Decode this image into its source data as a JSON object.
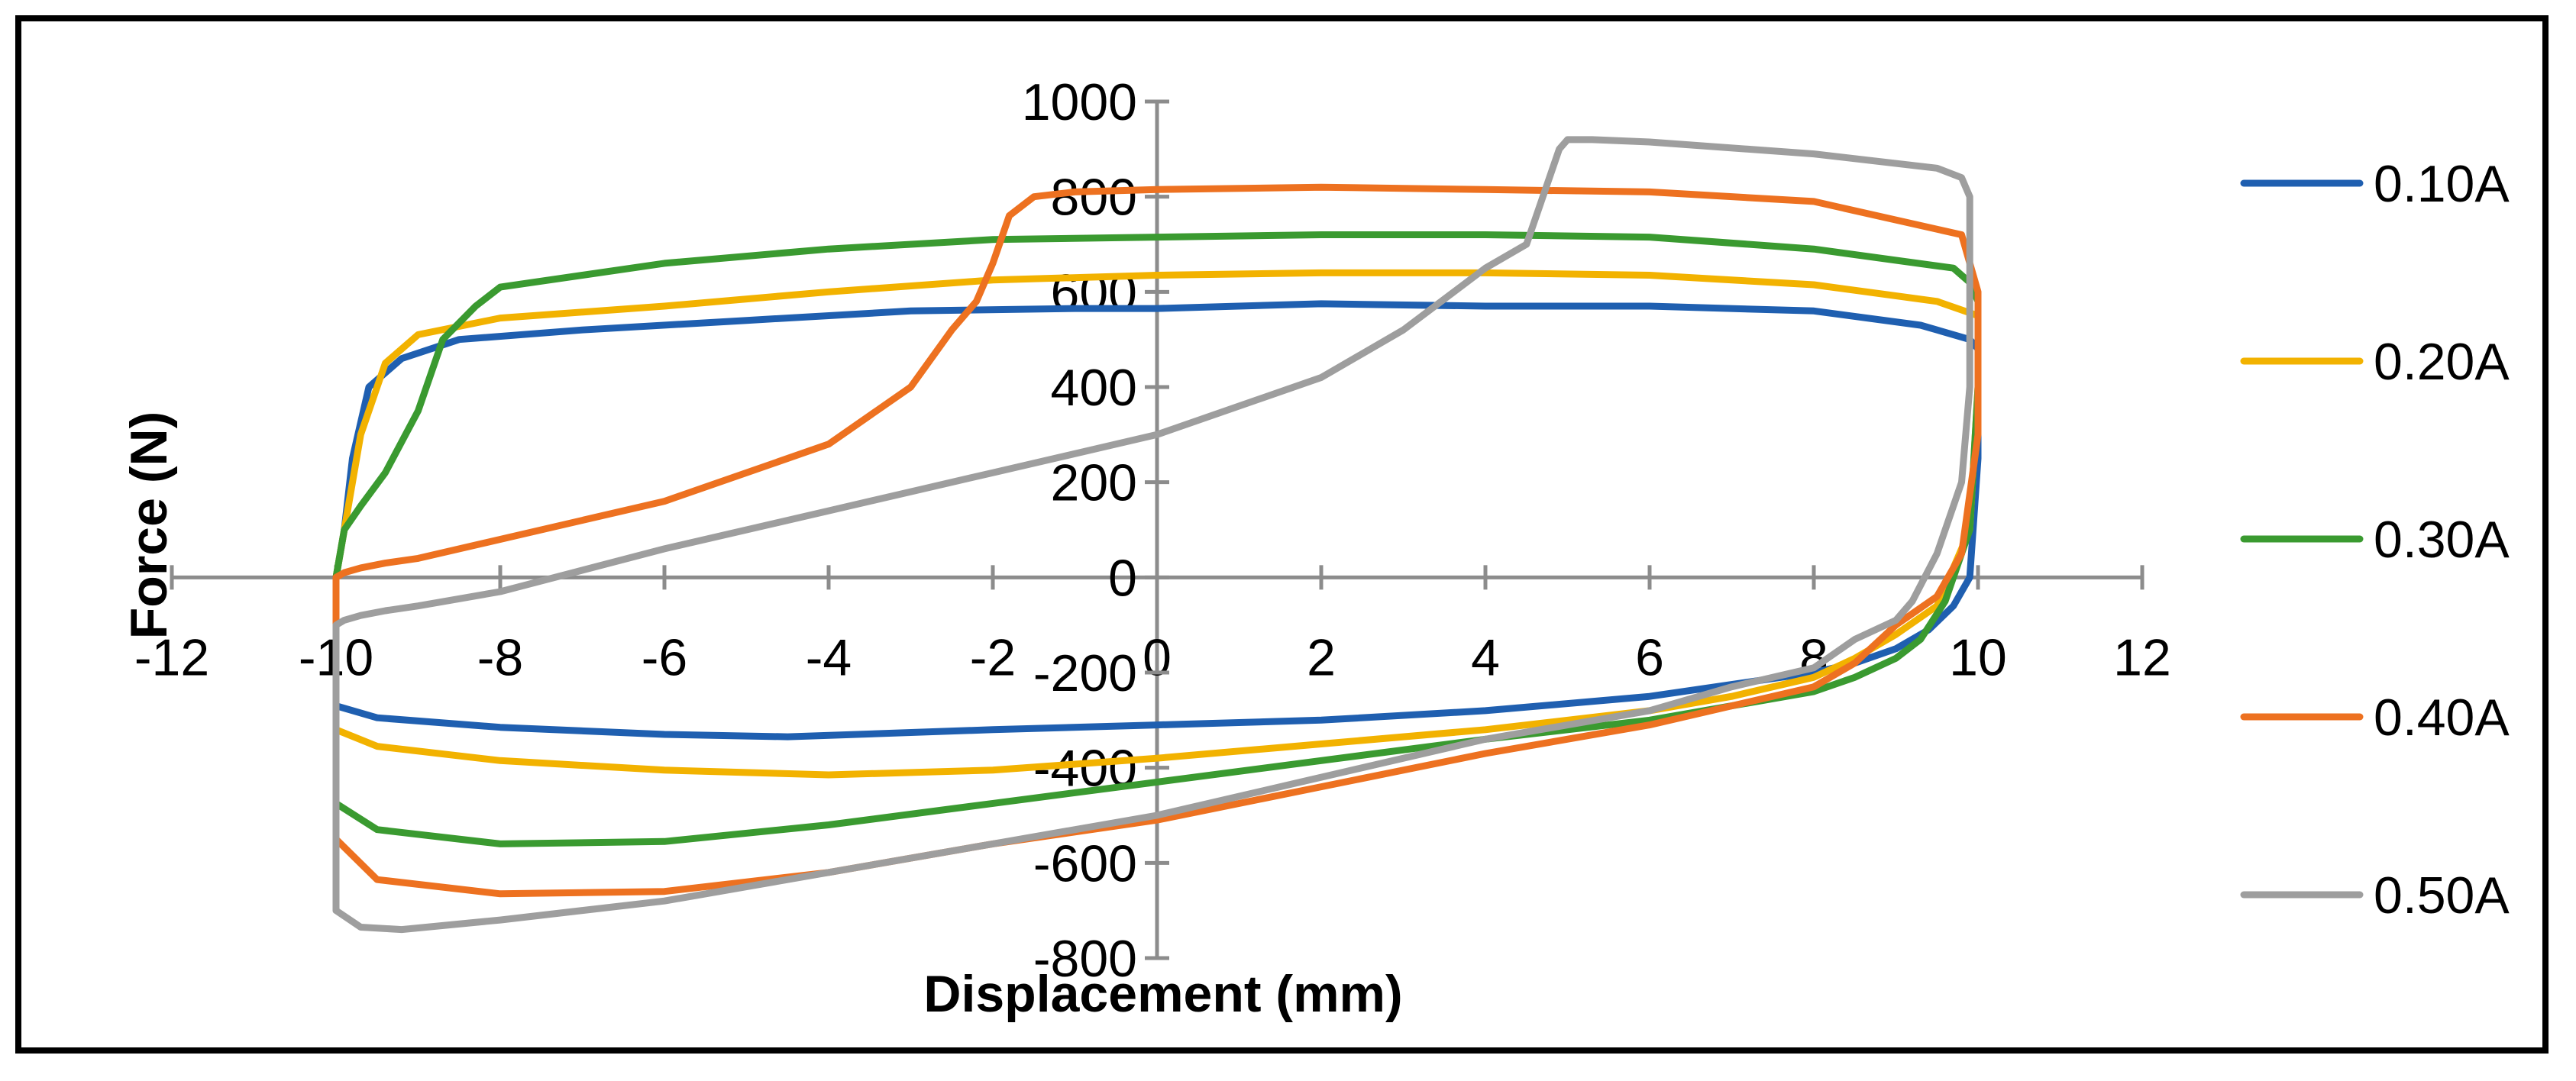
{
  "chart_data": {
    "type": "line",
    "title": "",
    "xlabel": "Displacement (mm)",
    "ylabel": "Force (N)",
    "xlim": [
      -12,
      12
    ],
    "ylim": [
      -800,
      1000
    ],
    "x_ticks": [
      "-12",
      "-10",
      "-8",
      "-6",
      "-4",
      "-2",
      "0",
      "2",
      "4",
      "6",
      "8",
      "10",
      "12"
    ],
    "y_ticks": [
      "-800",
      "-600",
      "-400",
      "-200",
      "0",
      "200",
      "400",
      "600",
      "800",
      "1000"
    ],
    "grid": false,
    "legend_position": "right",
    "series": [
      {
        "name": "0.10A",
        "color": "#1F5FB0",
        "x": [
          -10,
          -9.9,
          -9.8,
          -9.6,
          -9.2,
          -8.5,
          -7,
          -5,
          -3,
          -1,
          0,
          2,
          4,
          6,
          8,
          9.3,
          9.5,
          9.9,
          10,
          10,
          9.9,
          9.7,
          9.4,
          9,
          8.5,
          8,
          7,
          6,
          4,
          2,
          0,
          -2,
          -4.5,
          -6,
          -8,
          -9.5,
          -10,
          -10,
          -10
        ],
        "y": [
          0,
          100,
          250,
          400,
          460,
          500,
          520,
          540,
          560,
          565,
          565,
          575,
          570,
          570,
          560,
          530,
          520,
          500,
          480,
          250,
          0,
          -60,
          -110,
          -150,
          -180,
          -200,
          -225,
          -250,
          -280,
          -300,
          -310,
          -320,
          -335,
          -330,
          -315,
          -295,
          -270,
          -100,
          0
        ]
      },
      {
        "name": "0.20A",
        "color": "#F2B200",
        "x": [
          -10,
          -9.9,
          -9.7,
          -9.4,
          -9,
          -8,
          -6,
          -4,
          -2,
          0,
          2,
          4,
          6,
          8,
          9.5,
          10,
          10,
          9.9,
          9.5,
          9,
          8.5,
          8,
          7,
          6,
          4,
          2,
          0,
          -2,
          -4,
          -6,
          -8,
          -9.5,
          -10,
          -10,
          -10
        ],
        "y": [
          0,
          100,
          300,
          450,
          510,
          545,
          570,
          600,
          625,
          635,
          640,
          640,
          635,
          615,
          580,
          550,
          400,
          100,
          -60,
          -120,
          -170,
          -210,
          -250,
          -280,
          -320,
          -350,
          -380,
          -405,
          -415,
          -405,
          -385,
          -355,
          -320,
          -100,
          0
        ]
      },
      {
        "name": "0.30A",
        "color": "#3A9A30",
        "x": [
          -10,
          -9.9,
          -9.7,
          -9.4,
          -9,
          -8.7,
          -8.3,
          -8,
          -7,
          -6,
          -4,
          -2,
          0,
          2,
          4,
          6,
          8,
          9.7,
          9.9,
          10,
          10,
          9.9,
          9.6,
          9.3,
          9,
          8.5,
          8,
          7,
          6,
          4,
          2,
          0,
          -2,
          -4,
          -6,
          -8,
          -9.5,
          -10,
          -10,
          -10
        ],
        "y": [
          0,
          100,
          150,
          220,
          350,
          500,
          570,
          610,
          635,
          660,
          690,
          710,
          715,
          720,
          720,
          715,
          690,
          650,
          620,
          580,
          400,
          100,
          -50,
          -130,
          -170,
          -210,
          -240,
          -270,
          -300,
          -340,
          -385,
          -430,
          -475,
          -520,
          -555,
          -560,
          -530,
          -475,
          -350,
          0
        ]
      },
      {
        "name": "0.40A",
        "color": "#ED7120",
        "x": [
          -10,
          -9.9,
          -9.7,
          -9.4,
          -9,
          -8,
          -6,
          -4,
          -3,
          -2.5,
          -2.2,
          -2,
          -1.8,
          -1.5,
          -1,
          0,
          2,
          4,
          6,
          8,
          9.8,
          10,
          10,
          9.8,
          9.5,
          9,
          8.5,
          8,
          7,
          6,
          4,
          2,
          0,
          -2,
          -4,
          -6,
          -8,
          -9.5,
          -10,
          -10,
          -10
        ],
        "y": [
          0,
          10,
          20,
          30,
          40,
          80,
          160,
          280,
          400,
          520,
          580,
          660,
          760,
          800,
          810,
          815,
          820,
          815,
          810,
          790,
          720,
          600,
          300,
          50,
          -40,
          -100,
          -180,
          -230,
          -270,
          -310,
          -370,
          -440,
          -510,
          -560,
          -620,
          -660,
          -665,
          -635,
          -550,
          -300,
          0
        ]
      },
      {
        "name": "0.50A",
        "color": "#9E9E9E",
        "x": [
          -10,
          -9.9,
          -9.7,
          -9.4,
          -9,
          -8,
          -6,
          -4,
          -2,
          -0.5,
          0,
          1,
          2,
          3,
          4,
          4.5,
          4.9,
          5,
          5.3,
          6,
          8,
          9.5,
          9.8,
          9.9,
          9.9,
          9.8,
          9.5,
          9.2,
          9,
          8.5,
          8,
          7,
          6,
          4,
          2,
          0,
          -2,
          -4,
          -6,
          -8,
          -9.2,
          -9.7,
          -10,
          -10,
          -10
        ],
        "y": [
          -100,
          -90,
          -80,
          -70,
          -60,
          -30,
          60,
          140,
          220,
          280,
          300,
          360,
          420,
          520,
          650,
          700,
          900,
          920,
          920,
          915,
          890,
          860,
          840,
          800,
          400,
          200,
          50,
          -50,
          -90,
          -130,
          -190,
          -230,
          -280,
          -340,
          -420,
          -500,
          -560,
          -620,
          -680,
          -720,
          -740,
          -735,
          -700,
          -500,
          -100
        ]
      }
    ]
  }
}
